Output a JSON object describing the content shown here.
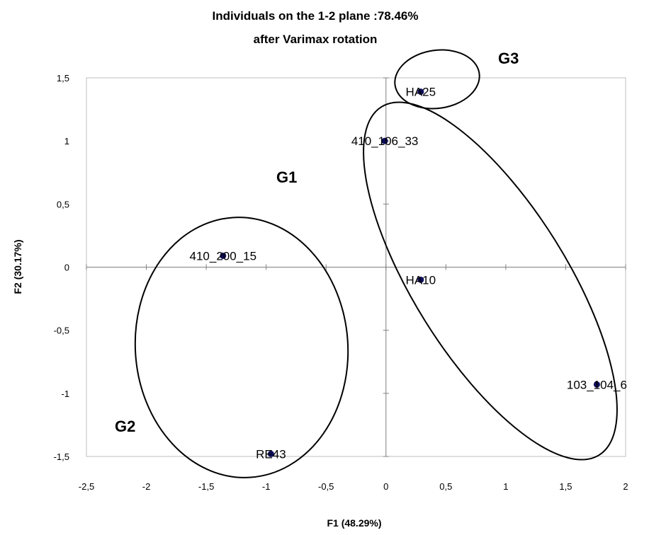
{
  "chart_data": {
    "type": "scatter",
    "title": [
      "Individuals on the 1-2 plane :78.46%",
      "after Varimax rotation"
    ],
    "xlabel": "F1 (48.29%)",
    "ylabel": "F2 (30.17%)",
    "xlim": [
      -2.5,
      2
    ],
    "ylim": [
      -1.5,
      1.5
    ],
    "x_ticks": [
      -2.5,
      -2,
      -1.5,
      -1,
      -0.5,
      0,
      0.5,
      1,
      1.5,
      2
    ],
    "x_tick_labels": [
      "-2,5",
      "-2",
      "-1,5",
      "-1",
      "-0,5",
      "0",
      "0,5",
      "1",
      "1,5",
      "2"
    ],
    "y_ticks": [
      1.5,
      1,
      0.5,
      0,
      -0.5,
      -1,
      -1.5
    ],
    "y_tick_labels": [
      "1,5",
      "1",
      "0,5",
      "0",
      "-0,5",
      "-1",
      "-1,5"
    ],
    "points": [
      {
        "label": "HA25",
        "x": 0.29,
        "y": 1.39
      },
      {
        "label": "410_106_33",
        "x": -0.01,
        "y": 1.0
      },
      {
        "label": "410_200_15",
        "x": -1.36,
        "y": 0.09
      },
      {
        "label": "HA10",
        "x": 0.29,
        "y": -0.1
      },
      {
        "label": "103_104_6",
        "x": 1.76,
        "y": -0.93
      },
      {
        "label": "RE43",
        "x": -0.96,
        "y": -1.48
      }
    ],
    "groups": [
      {
        "label": "G1",
        "members": [
          "410_106_33",
          "HA10",
          "103_104_6"
        ]
      },
      {
        "label": "G2",
        "members": [
          "410_200_15",
          "RE43"
        ]
      },
      {
        "label": "G3",
        "members": [
          "HA25"
        ]
      }
    ],
    "point_color": "#0d0d5a",
    "grid": false
  }
}
